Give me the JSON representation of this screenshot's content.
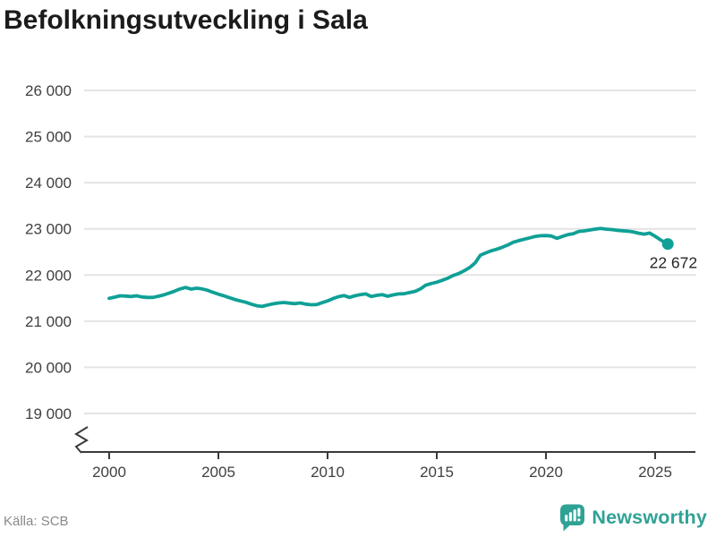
{
  "header": {
    "title": "Befolkningsutveckling i Sala"
  },
  "chart_data": {
    "type": "line",
    "title": "Befolkningsutveckling i Sala",
    "xlabel": "",
    "ylabel": "",
    "series_name": "Befolkning i Sala",
    "x": [
      2000.0,
      2000.25,
      2000.5,
      2000.75,
      2001.0,
      2001.25,
      2001.5,
      2001.75,
      2002.0,
      2002.25,
      2002.5,
      2002.75,
      2003.0,
      2003.25,
      2003.5,
      2003.75,
      2004.0,
      2004.25,
      2004.5,
      2004.75,
      2005.0,
      2005.25,
      2005.5,
      2005.75,
      2006.0,
      2006.25,
      2006.5,
      2006.75,
      2007.0,
      2007.25,
      2007.5,
      2007.75,
      2008.0,
      2008.25,
      2008.5,
      2008.75,
      2009.0,
      2009.25,
      2009.5,
      2009.75,
      2010.0,
      2010.25,
      2010.5,
      2010.75,
      2011.0,
      2011.25,
      2011.5,
      2011.75,
      2012.0,
      2012.25,
      2012.5,
      2012.75,
      2013.0,
      2013.25,
      2013.5,
      2013.75,
      2014.0,
      2014.25,
      2014.5,
      2014.75,
      2015.0,
      2015.25,
      2015.5,
      2015.75,
      2016.0,
      2016.25,
      2016.5,
      2016.75,
      2017.0,
      2017.25,
      2017.5,
      2017.75,
      2018.0,
      2018.25,
      2018.5,
      2018.75,
      2019.0,
      2019.25,
      2019.5,
      2019.75,
      2020.0,
      2020.25,
      2020.5,
      2020.75,
      2021.0,
      2021.25,
      2021.5,
      2021.75,
      2022.0,
      2022.25,
      2022.5,
      2022.75,
      2023.0,
      2023.25,
      2023.5,
      2023.75,
      2024.0,
      2024.25,
      2024.5,
      2024.75,
      2025.0,
      2025.25,
      2025.58
    ],
    "values": [
      21495,
      21520,
      21550,
      21545,
      21535,
      21550,
      21525,
      21515,
      21515,
      21540,
      21570,
      21610,
      21650,
      21700,
      21730,
      21695,
      21715,
      21700,
      21670,
      21625,
      21585,
      21550,
      21510,
      21470,
      21440,
      21410,
      21370,
      21335,
      21320,
      21350,
      21375,
      21395,
      21405,
      21390,
      21380,
      21395,
      21370,
      21355,
      21360,
      21400,
      21440,
      21490,
      21530,
      21555,
      21515,
      21550,
      21575,
      21590,
      21535,
      21560,
      21575,
      21540,
      21570,
      21590,
      21595,
      21620,
      21645,
      21700,
      21780,
      21815,
      21845,
      21885,
      21930,
      21990,
      22030,
      22090,
      22160,
      22260,
      22430,
      22480,
      22525,
      22560,
      22600,
      22650,
      22710,
      22745,
      22775,
      22805,
      22835,
      22850,
      22855,
      22845,
      22795,
      22835,
      22875,
      22895,
      22945,
      22955,
      22975,
      22995,
      23010,
      22995,
      22985,
      22970,
      22960,
      22950,
      22935,
      22905,
      22885,
      22910,
      22840,
      22760,
      22672
    ],
    "xticks": [
      2000,
      2005,
      2010,
      2015,
      2020,
      2025
    ],
    "xtick_labels": [
      "2000",
      "2005",
      "2010",
      "2015",
      "2020",
      "2025"
    ],
    "ytick_values": [
      19000,
      20000,
      21000,
      22000,
      23000,
      24000,
      25000,
      26000
    ],
    "ytick_labels": [
      "19 000",
      "20 000",
      "21 000",
      "22 000",
      "23 000",
      "24 000",
      "25 000",
      "26 000"
    ],
    "ylim": [
      19000,
      26000
    ],
    "xlim": [
      1998.85,
      2026.9
    ],
    "grid": "horizontal-only",
    "axis_break_bottom_left": true,
    "legend_position": "none",
    "line_color": "#0fa096",
    "end_point": {
      "x": 2025.58,
      "value": 22672,
      "label": "22 672"
    }
  },
  "footer": {
    "source": "Källa: SCB",
    "brand": "Newsworthy"
  },
  "icons": {
    "brand_logo": "newsworthy-speech-bubble-bar-chart-icon"
  },
  "colors": {
    "line": "#0fa096",
    "brand_teal": "#2fa295",
    "title_text": "#1b1b1b",
    "tick_text": "#404040",
    "grid": "#e4e4e4",
    "axis": "#3a3a3a",
    "source_text": "#898989"
  }
}
